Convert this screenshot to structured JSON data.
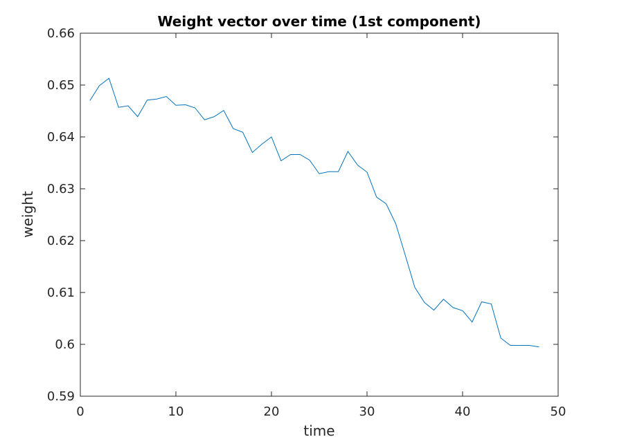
{
  "chart_data": {
    "type": "line",
    "title": "Weight vector over time (1st component)",
    "xlabel": "time",
    "ylabel": "weight",
    "xlim": [
      0,
      50
    ],
    "ylim": [
      0.59,
      0.66
    ],
    "xticks": [
      0,
      10,
      20,
      30,
      40,
      50
    ],
    "yticks": [
      0.59,
      0.6,
      0.61,
      0.62,
      0.63,
      0.64,
      0.65,
      0.66
    ],
    "xtick_labels": [
      "0",
      "10",
      "20",
      "30",
      "40",
      "50"
    ],
    "ytick_labels": [
      "0.59",
      "0.6",
      "0.61",
      "0.62",
      "0.63",
      "0.64",
      "0.65",
      "0.66"
    ],
    "grid": false,
    "line_color": "#0072BD",
    "series": [
      {
        "x": [
          1,
          2,
          3,
          4,
          5,
          6,
          7,
          8,
          9,
          10,
          11,
          12,
          13,
          14,
          15,
          16,
          17,
          18,
          19,
          20,
          21,
          22,
          23,
          24,
          25,
          26,
          27,
          28,
          29,
          30,
          31,
          32,
          33,
          34,
          35,
          36,
          37,
          38,
          39,
          40,
          41,
          42,
          43,
          44,
          45,
          46,
          47,
          48
        ],
        "values": [
          0.647,
          0.6499,
          0.6513,
          0.6457,
          0.646,
          0.6439,
          0.6471,
          0.6473,
          0.6478,
          0.6461,
          0.6462,
          0.6456,
          0.6433,
          0.6439,
          0.6451,
          0.6416,
          0.6409,
          0.637,
          0.6386,
          0.64,
          0.6354,
          0.6366,
          0.6366,
          0.6355,
          0.6329,
          0.6333,
          0.6333,
          0.6372,
          0.6346,
          0.6332,
          0.6284,
          0.6271,
          0.6233,
          0.6172,
          0.611,
          0.6081,
          0.6066,
          0.6087,
          0.6071,
          0.6065,
          0.6043,
          0.6082,
          0.6078,
          0.6012,
          0.5998,
          0.5998,
          0.5998,
          0.5995
        ]
      }
    ]
  }
}
